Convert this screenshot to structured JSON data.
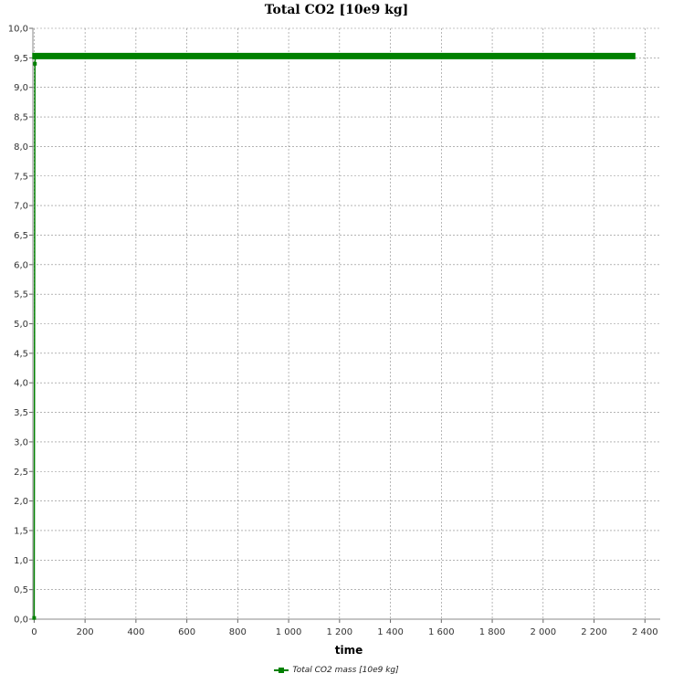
{
  "chart_data": {
    "type": "line",
    "title": "Total CO2 [10e9 kg]",
    "xlabel": "time",
    "ylabel": "",
    "xlim": [
      -5,
      2460
    ],
    "ylim": [
      0,
      10
    ],
    "xticks": [
      0,
      200,
      400,
      600,
      800,
      1000,
      1200,
      1400,
      1600,
      1800,
      2000,
      2200,
      2400
    ],
    "xtick_labels": [
      "0",
      "200",
      "400",
      "600",
      "800",
      "1 000",
      "1 200",
      "1 400",
      "1 600",
      "1 800",
      "2 000",
      "2 200",
      "2 400"
    ],
    "yticks": [
      0,
      0.5,
      1,
      1.5,
      2,
      2.5,
      3,
      3.5,
      4,
      4.5,
      5,
      5.5,
      6,
      6.5,
      7,
      7.5,
      8,
      8.5,
      9,
      9.5,
      10
    ],
    "ytick_labels": [
      "0,0",
      "0,5",
      "1,0",
      "1,5",
      "2,0",
      "2,5",
      "3,0",
      "3,5",
      "4,0",
      "4,5",
      "5,0",
      "5,5",
      "6,0",
      "6,5",
      "7,0",
      "7,5",
      "8,0",
      "8,5",
      "9,0",
      "9,5",
      "10,0"
    ],
    "grid": true,
    "legend_position": "bottom-center",
    "series": [
      {
        "name": "Total CO2 mass [10e9 kg]",
        "color": "#008000",
        "x": [
          0,
          3,
          5,
          100,
          200,
          400,
          600,
          800,
          1000,
          1200,
          1400,
          1600,
          1800,
          2000,
          2200,
          2350
        ],
        "y": [
          0.02,
          9.4,
          9.53,
          9.53,
          9.53,
          9.53,
          9.53,
          9.53,
          9.53,
          9.53,
          9.53,
          9.53,
          9.53,
          9.53,
          9.53,
          9.53
        ]
      }
    ]
  }
}
